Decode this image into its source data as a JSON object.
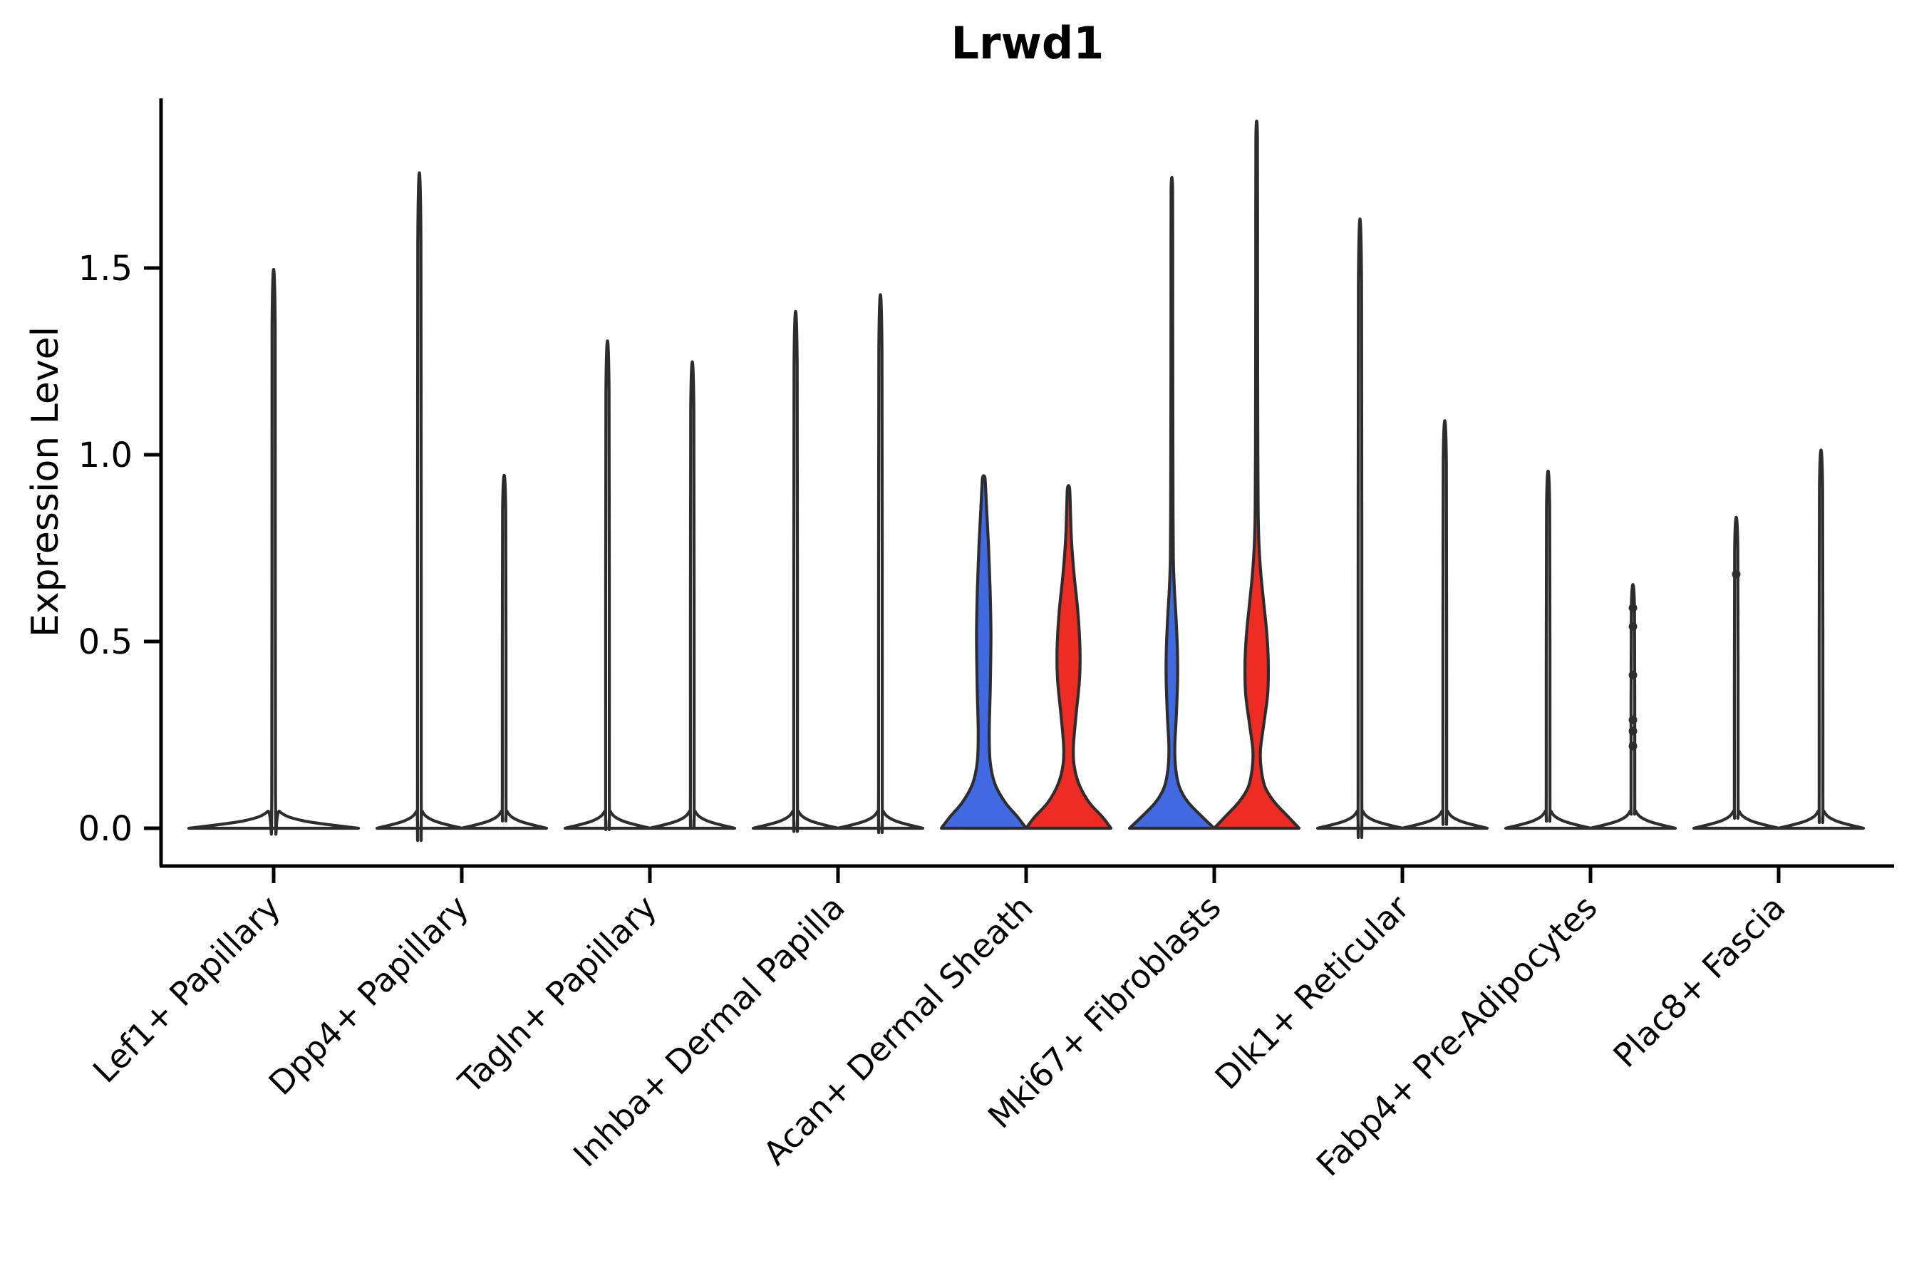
{
  "title": "Lrwd1",
  "y_axis": {
    "label": "Expression Level",
    "tick_labels": [
      "0.0",
      "0.5",
      "1.0",
      "1.5"
    ],
    "tick_values": [
      0.0,
      0.5,
      1.0,
      1.5
    ]
  },
  "x_axis": {
    "categories": [
      "Lef1+ Papillary",
      "Dpp4+ Papillary",
      "Tagln+ Papillary",
      "Inhba+ Dermal Papilla",
      "Acan+ Dermal Sheath",
      "Mki67+ Fibroblasts",
      "Dlk1+ Reticular",
      "Fabp4+ Pre-Adipocytes",
      "Plac8+ Fascia"
    ]
  },
  "colors": {
    "blue": "#4169e1",
    "red": "#ee2c24",
    "outline": "#2d2d2d",
    "axis": "#000000",
    "background": "#ffffff"
  },
  "chart_data": {
    "type": "violin",
    "title": "Lrwd1",
    "xlabel": "",
    "ylabel": "Expression Level",
    "ylim": [
      0,
      1.95
    ],
    "categories": [
      "Lef1+ Papillary",
      "Dpp4+ Papillary",
      "Tagln+ Papillary",
      "Inhba+ Dermal Papilla",
      "Acan+ Dermal Sheath",
      "Mki67+ Fibroblasts",
      "Dlk1+ Reticular",
      "Fabp4+ Pre-Adipocytes",
      "Plac8+ Fascia"
    ],
    "violins": [
      {
        "category": "Lef1+ Papillary",
        "split": "single",
        "group": "none",
        "max_expression": 1.34,
        "shape": "spike"
      },
      {
        "category": "Dpp4+ Papillary",
        "split": "left",
        "group": "none",
        "max_expression": 1.57,
        "shape": "spike"
      },
      {
        "category": "Dpp4+ Papillary",
        "split": "right",
        "group": "none",
        "max_expression": 0.85,
        "shape": "spike"
      },
      {
        "category": "Tagln+ Papillary",
        "split": "left",
        "group": "none",
        "max_expression": 1.17,
        "shape": "spike"
      },
      {
        "category": "Tagln+ Papillary",
        "split": "right",
        "group": "none",
        "max_expression": 1.12,
        "shape": "spike"
      },
      {
        "category": "Inhba+ Dermal Papilla",
        "split": "left",
        "group": "none",
        "max_expression": 1.24,
        "shape": "spike"
      },
      {
        "category": "Inhba+ Dermal Papilla",
        "split": "right",
        "group": "none",
        "max_expression": 1.28,
        "shape": "spike"
      },
      {
        "category": "Acan+ Dermal Sheath",
        "split": "left",
        "group": "blue",
        "max_expression": 0.94,
        "shape": "violin",
        "profile": [
          [
            0.0,
            1.0
          ],
          [
            0.03,
            0.8
          ],
          [
            0.07,
            0.5
          ],
          [
            0.12,
            0.26
          ],
          [
            0.18,
            0.15
          ],
          [
            0.26,
            0.13
          ],
          [
            0.38,
            0.155
          ],
          [
            0.52,
            0.17
          ],
          [
            0.64,
            0.15
          ],
          [
            0.75,
            0.115
          ],
          [
            0.85,
            0.07
          ],
          [
            0.91,
            0.045
          ],
          [
            0.94,
            0.025
          ]
        ]
      },
      {
        "category": "Acan+ Dermal Sheath",
        "split": "right",
        "group": "red",
        "max_expression": 0.91,
        "shape": "violin",
        "profile": [
          [
            0.0,
            1.0
          ],
          [
            0.03,
            0.8
          ],
          [
            0.07,
            0.48
          ],
          [
            0.12,
            0.24
          ],
          [
            0.17,
            0.13
          ],
          [
            0.22,
            0.115
          ],
          [
            0.3,
            0.175
          ],
          [
            0.4,
            0.26
          ],
          [
            0.48,
            0.27
          ],
          [
            0.58,
            0.22
          ],
          [
            0.68,
            0.13
          ],
          [
            0.77,
            0.07
          ],
          [
            0.85,
            0.045
          ],
          [
            0.91,
            0.025
          ]
        ]
      },
      {
        "category": "Mki67+ Fibroblasts",
        "split": "left",
        "group": "blue",
        "max_expression": 1.71,
        "shape": "violin",
        "profile": [
          [
            0.0,
            1.0
          ],
          [
            0.03,
            0.72
          ],
          [
            0.07,
            0.38
          ],
          [
            0.11,
            0.18
          ],
          [
            0.16,
            0.09
          ],
          [
            0.22,
            0.07
          ],
          [
            0.3,
            0.105
          ],
          [
            0.4,
            0.135
          ],
          [
            0.48,
            0.13
          ],
          [
            0.56,
            0.1
          ],
          [
            0.64,
            0.06
          ],
          [
            0.72,
            0.035
          ],
          [
            0.85,
            0.028
          ],
          [
            1.0,
            0.025
          ],
          [
            1.2,
            0.022
          ],
          [
            1.45,
            0.02
          ],
          [
            1.71,
            0.018
          ]
        ]
      },
      {
        "category": "Mki67+ Fibroblasts",
        "split": "right",
        "group": "red",
        "max_expression": 1.85,
        "shape": "violin",
        "profile": [
          [
            0.0,
            1.0
          ],
          [
            0.03,
            0.75
          ],
          [
            0.07,
            0.42
          ],
          [
            0.11,
            0.2
          ],
          [
            0.16,
            0.105
          ],
          [
            0.21,
            0.09
          ],
          [
            0.28,
            0.17
          ],
          [
            0.36,
            0.26
          ],
          [
            0.44,
            0.275
          ],
          [
            0.52,
            0.24
          ],
          [
            0.6,
            0.17
          ],
          [
            0.68,
            0.1
          ],
          [
            0.76,
            0.055
          ],
          [
            0.85,
            0.035
          ],
          [
            1.0,
            0.028
          ],
          [
            1.2,
            0.024
          ],
          [
            1.5,
            0.021
          ],
          [
            1.85,
            0.018
          ]
        ]
      },
      {
        "category": "Dlk1+ Reticular",
        "split": "left",
        "group": "none",
        "max_expression": 1.46,
        "shape": "spike"
      },
      {
        "category": "Dlk1+ Reticular",
        "split": "right",
        "group": "none",
        "max_expression": 0.98,
        "shape": "spike"
      },
      {
        "category": "Fabp4+ Pre-Adipocytes",
        "split": "left",
        "group": "none",
        "max_expression": 0.86,
        "shape": "spike"
      },
      {
        "category": "Fabp4+ Pre-Adipocytes",
        "split": "right",
        "group": "none",
        "max_expression": 0.59,
        "shape": "spike",
        "points": [
          0.59,
          0.54,
          0.41,
          0.29,
          0.26,
          0.22
        ]
      },
      {
        "category": "Plac8+ Fascia",
        "split": "left",
        "group": "none",
        "max_expression": 0.75,
        "shape": "spike",
        "points": [
          0.68
        ]
      },
      {
        "category": "Plac8+ Fascia",
        "split": "right",
        "group": "none",
        "max_expression": 0.91,
        "shape": "spike"
      }
    ]
  }
}
